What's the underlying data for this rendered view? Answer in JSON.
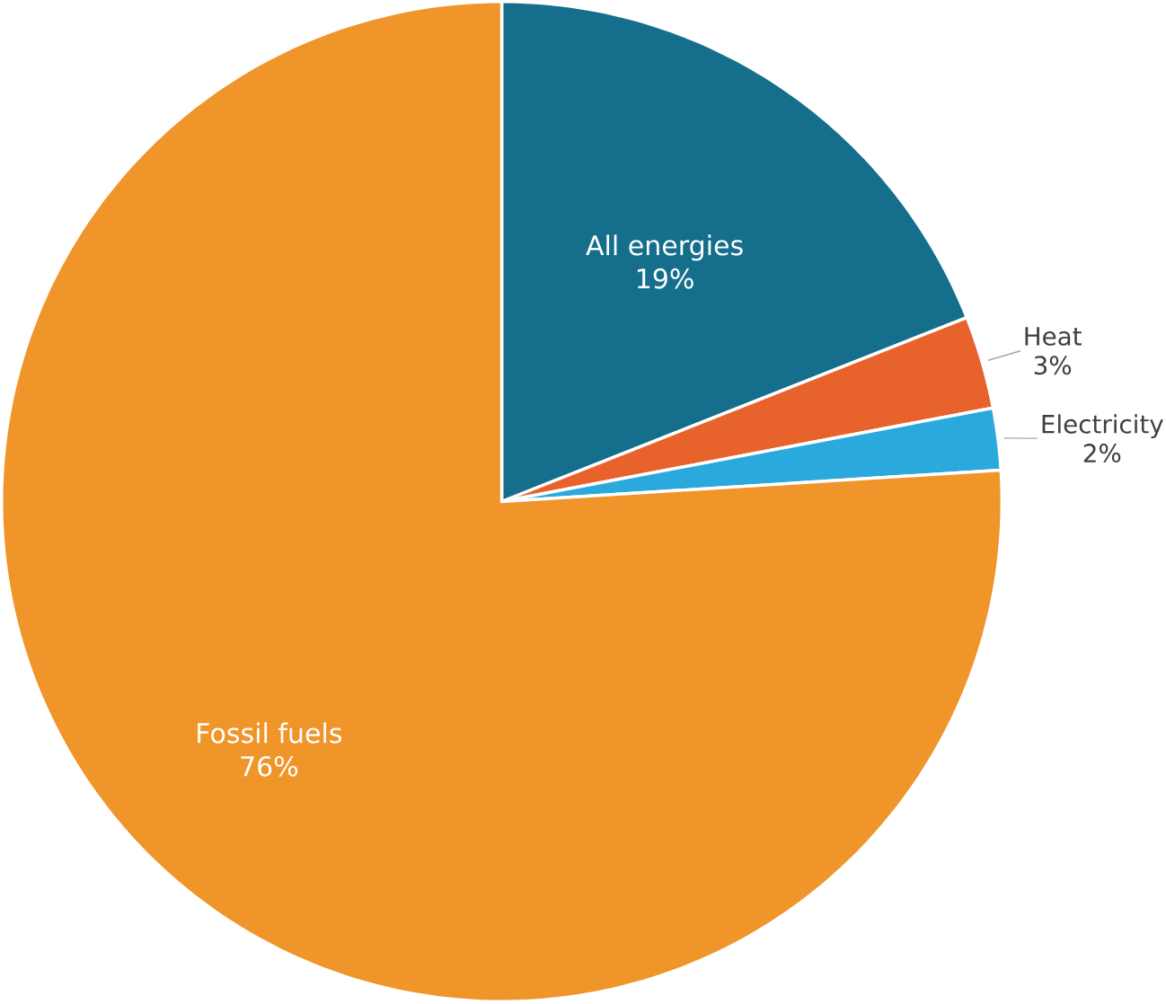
{
  "chart_data": {
    "type": "pie",
    "categories": [
      "All energies",
      "Heat",
      "Electricity",
      "Fossil fuels"
    ],
    "values": [
      19,
      3,
      2,
      76
    ],
    "value_labels": [
      "19%",
      "3%",
      "2%",
      "76%"
    ],
    "colors": [
      "#156f8c",
      "#e8622c",
      "#29a9dc",
      "#f0952a"
    ]
  }
}
